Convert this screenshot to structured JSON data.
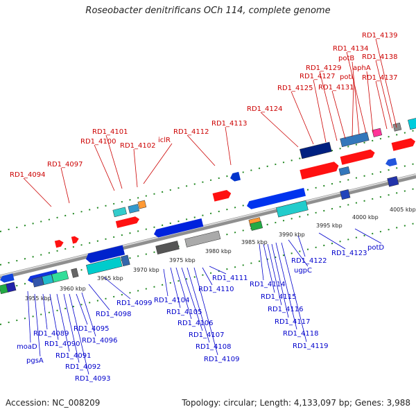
{
  "title": "Roseobacter denitrificans OCh 114, complete genome",
  "footer": {
    "accession": "Accession: NC_008209",
    "summary": "Topology: circular; Length: 4,133,097 bp; Genes: 3,988"
  },
  "colors": {
    "upper_labels": "#cc0000",
    "lower_labels": "#0000cc",
    "backbone": "#888888",
    "tick": "#228822"
  },
  "kbp_ticks": [
    "3955 kbp",
    "3960 kbp",
    "3965 kbp",
    "3970 kbp",
    "3975 kbp",
    "3980 kbp",
    "3985 kbp",
    "3990 kbp",
    "3995 kbp",
    "4000 kbp",
    "4005 kbp"
  ],
  "upper_genes": [
    "RD1_4094",
    "RD1_4097",
    "RD1_4100",
    "RD1_4101",
    "RD1_4102",
    "iclR",
    "RD1_4112",
    "RD1_4113",
    "RD1_4124",
    "RD1_4125",
    "RD1_4127",
    "RD1_4129",
    "RD1_4131",
    "potI",
    "potB",
    "RD1_4134",
    "aphA",
    "RD1_4137",
    "RD1_4138",
    "RD1_4139"
  ],
  "lower_genes": [
    "moaD",
    "pgsA",
    "RD1_4089",
    "RD1_4090",
    "RD1_4091",
    "RD1_4092",
    "RD1_4093",
    "RD1_4095",
    "RD1_4096",
    "RD1_4098",
    "RD1_4099",
    "RD1_4104",
    "RD1_4105",
    "RD1_4106",
    "RD1_4107",
    "RD1_4108",
    "RD1_4109",
    "RD1_4110",
    "RD1_4111",
    "RD1_4114",
    "RD1_4115",
    "RD1_4116",
    "RD1_4117",
    "RD1_4118",
    "RD1_4119",
    "ugpC",
    "RD1_4122",
    "RD1_4123",
    "potD"
  ]
}
